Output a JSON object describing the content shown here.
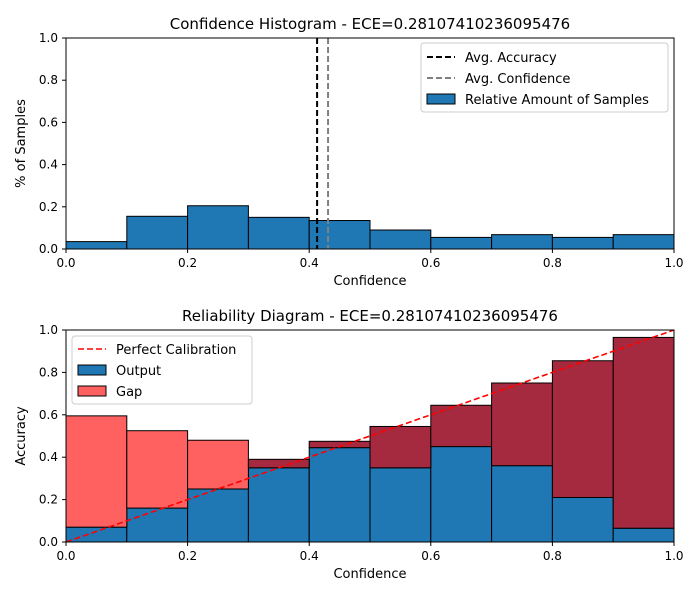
{
  "chart_data": [
    {
      "type": "bar",
      "title": "Confidence Histogram -  ECE=0.28107410236095476",
      "xlabel": "Confidence",
      "ylabel": "% of Samples",
      "xlim": [
        0,
        1
      ],
      "ylim": [
        0,
        1
      ],
      "x_ticks": [
        "0.0",
        "0.2",
        "0.4",
        "0.6",
        "0.8",
        "1.0"
      ],
      "y_ticks": [
        "0.0",
        "0.2",
        "0.4",
        "0.6",
        "0.8",
        "1.0"
      ],
      "bin_width": 0.1,
      "bin_starts": [
        0.0,
        0.1,
        0.2,
        0.3,
        0.4,
        0.5,
        0.6,
        0.7,
        0.8,
        0.9
      ],
      "series": [
        {
          "name": "Relative Amount of Samples",
          "color": "#1f77b4",
          "values": [
            0.035,
            0.155,
            0.205,
            0.15,
            0.135,
            0.09,
            0.055,
            0.068,
            0.055,
            0.068
          ]
        }
      ],
      "vlines": [
        {
          "name": "Avg. Accuracy",
          "x": 0.413,
          "color": "#000000"
        },
        {
          "name": "Avg. Confidence",
          "x": 0.431,
          "color": "#808080"
        }
      ],
      "legend": "top-right"
    },
    {
      "type": "bar",
      "title": "Reliability Diagram -  ECE=0.28107410236095476",
      "xlabel": "Confidence",
      "ylabel": "Accuracy",
      "xlim": [
        0,
        1
      ],
      "ylim": [
        0,
        1
      ],
      "x_ticks": [
        "0.0",
        "0.2",
        "0.4",
        "0.6",
        "0.8",
        "1.0"
      ],
      "y_ticks": [
        "0.0",
        "0.2",
        "0.4",
        "0.6",
        "0.8",
        "1.0"
      ],
      "bin_width": 0.1,
      "bin_starts": [
        0.0,
        0.1,
        0.2,
        0.3,
        0.4,
        0.5,
        0.6,
        0.7,
        0.8,
        0.9
      ],
      "output_values": [
        0.07,
        0.16,
        0.25,
        0.35,
        0.445,
        0.35,
        0.45,
        0.36,
        0.21,
        0.065
      ],
      "gap_tops": [
        0.595,
        0.525,
        0.48,
        0.39,
        0.475,
        0.545,
        0.645,
        0.75,
        0.855,
        0.965
      ],
      "legend_entries": [
        {
          "name": "Perfect Calibration",
          "color": "#ff0000"
        },
        {
          "name": "Output",
          "color": "#1f77b4"
        },
        {
          "name": "Gap",
          "color": "#ff6060"
        }
      ],
      "gap_over_color": "#a52a3f",
      "legend": "top-left"
    }
  ]
}
